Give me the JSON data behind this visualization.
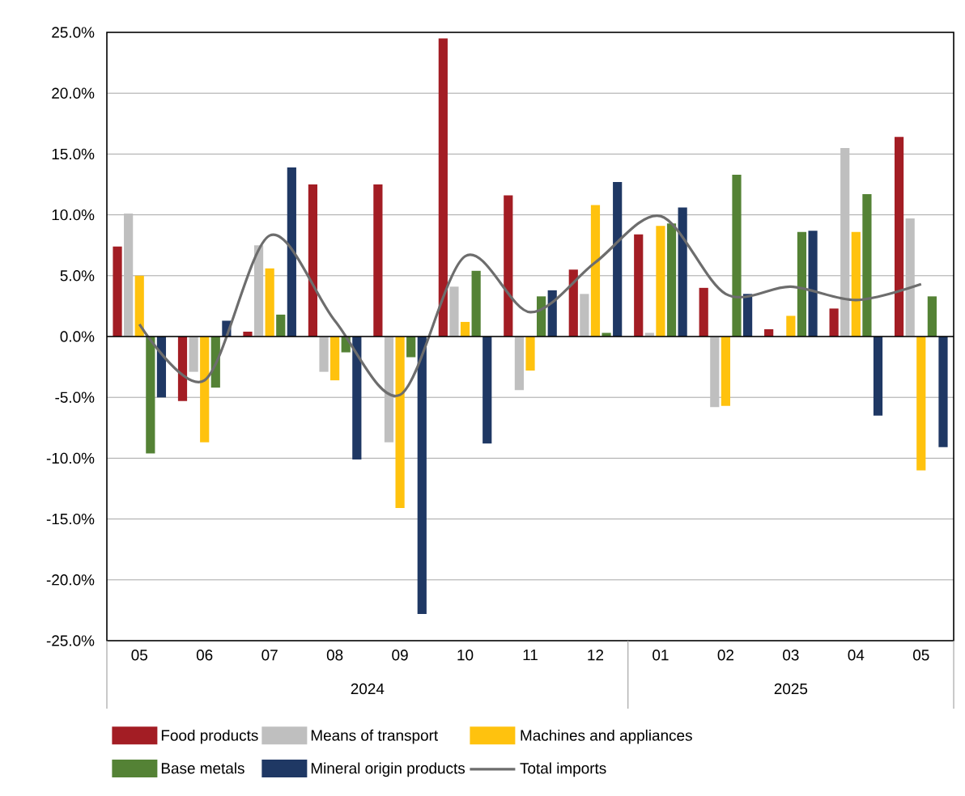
{
  "chart_data": {
    "type": "bar",
    "categories": [
      "05",
      "06",
      "07",
      "08",
      "09",
      "10",
      "11",
      "12",
      "01",
      "02",
      "03",
      "04",
      "05"
    ],
    "annotations": [
      "2024",
      "2025"
    ],
    "series": [
      {
        "name": "Food products",
        "color": "#a31d24",
        "values": [
          7.4,
          -5.3,
          0.4,
          12.5,
          12.5,
          24.5,
          11.6,
          5.5,
          8.4,
          4.0,
          0.6,
          2.3,
          16.4
        ]
      },
      {
        "name": "Means of transport",
        "color": "#bfbfbf",
        "values": [
          10.1,
          -2.9,
          7.5,
          -2.9,
          -8.7,
          4.1,
          -4.4,
          3.5,
          0.3,
          -5.8,
          null,
          15.5,
          9.7
        ]
      },
      {
        "name": "Machines and appliances",
        "color": "#ffc20e",
        "values": [
          5.0,
          -8.7,
          5.6,
          -3.6,
          -14.1,
          1.2,
          -2.8,
          10.8,
          9.1,
          -5.7,
          1.7,
          8.6,
          -11.0
        ]
      },
      {
        "name": "Base metals",
        "color": "#548235",
        "values": [
          -9.6,
          -4.2,
          1.8,
          -1.3,
          -1.7,
          5.4,
          3.3,
          0.3,
          9.3,
          13.3,
          8.6,
          11.7,
          3.3
        ]
      },
      {
        "name": "Mineral origin products",
        "color": "#1f3864",
        "values": [
          -5.0,
          1.3,
          13.9,
          -10.1,
          -22.8,
          -8.8,
          3.8,
          12.7,
          10.6,
          3.5,
          8.7,
          -6.5,
          -9.1
        ]
      },
      {
        "name": "Total imports",
        "type": "line",
        "color": "#6d6d6d",
        "marker": "none",
        "line_style": "solid",
        "values": [
          1.0,
          -3.6,
          8.3,
          1.3,
          -4.8,
          6.6,
          2.0,
          6.1,
          9.9,
          3.5,
          4.1,
          3.0,
          4.3
        ]
      }
    ],
    "ylim": [
      -25,
      25
    ],
    "yticks": [
      {
        "value": -25,
        "label": "-25.0%"
      },
      {
        "value": -20,
        "label": "-20.0%"
      },
      {
        "value": -15,
        "label": "-15.0%"
      },
      {
        "value": -10,
        "label": "-10.0%"
      },
      {
        "value": -5,
        "label": "-5.0%"
      },
      {
        "value": 0,
        "label": "0.0%"
      },
      {
        "value": 5,
        "label": "5.0%"
      },
      {
        "value": 10,
        "label": "10.0%"
      },
      {
        "value": 15,
        "label": "15.0%"
      },
      {
        "value": 20,
        "label": "20.0%"
      },
      {
        "value": 25,
        "label": "25.0%"
      }
    ],
    "grid": "y",
    "legend": "bottom"
  }
}
